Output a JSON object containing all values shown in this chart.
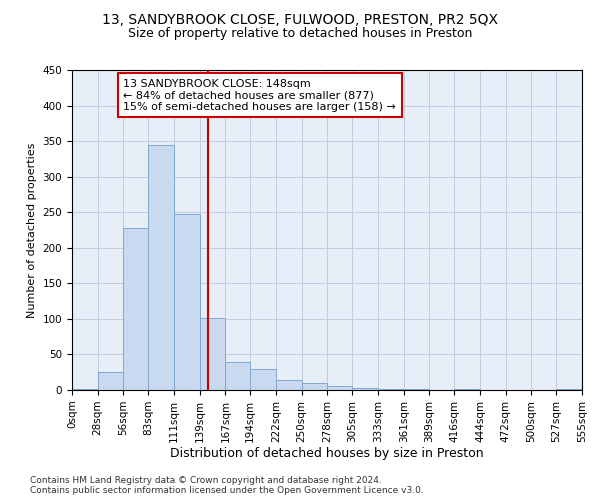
{
  "title1": "13, SANDYBROOK CLOSE, FULWOOD, PRESTON, PR2 5QX",
  "title2": "Size of property relative to detached houses in Preston",
  "xlabel": "Distribution of detached houses by size in Preston",
  "ylabel": "Number of detached properties",
  "bin_edges": [
    0,
    28,
    56,
    83,
    111,
    139,
    167,
    194,
    222,
    250,
    278,
    305,
    333,
    361,
    389,
    416,
    444,
    472,
    500,
    527,
    555
  ],
  "bar_heights": [
    2,
    25,
    228,
    345,
    248,
    101,
    40,
    30,
    14,
    10,
    5,
    3,
    1,
    1,
    0,
    2,
    0,
    0,
    0,
    2
  ],
  "bar_color": "#c9d9f0",
  "bar_edge_color": "#7fa8d0",
  "grid_color": "#c0ccdd",
  "background_color": "#e8eef7",
  "property_size": 148,
  "vline_color": "#cc0000",
  "annotation_line1": "13 SANDYBROOK CLOSE: 148sqm",
  "annotation_line2": "← 84% of detached houses are smaller (877)",
  "annotation_line3": "15% of semi-detached houses are larger (158) →",
  "annotation_box_color": "#ffffff",
  "annotation_box_edge": "#cc0000",
  "footer_text": "Contains HM Land Registry data © Crown copyright and database right 2024.\nContains public sector information licensed under the Open Government Licence v3.0.",
  "ylim": [
    0,
    450
  ],
  "title1_fontsize": 10,
  "title2_fontsize": 9,
  "xlabel_fontsize": 9,
  "ylabel_fontsize": 8,
  "tick_fontsize": 7.5,
  "annotation_fontsize": 8,
  "footer_fontsize": 6.5
}
